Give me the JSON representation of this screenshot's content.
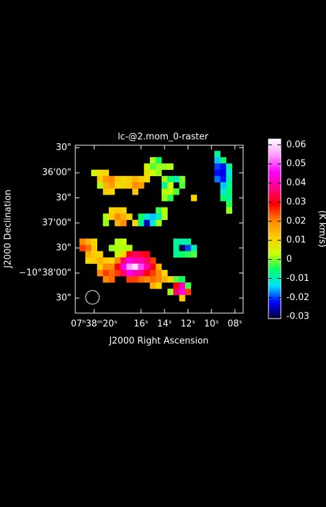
{
  "chart_data": {
    "type": "raster",
    "title": "lc-@2.mom_0-raster",
    "x_label": "J2000 Right Ascension",
    "y_label": "J2000 Declination",
    "colorbar_label": "(K km/s)",
    "xlim": [
      21.6,
      7.3
    ],
    "xticks": [
      {
        "value": 20,
        "label": "07ʰ38ᵐ20ˢ"
      },
      {
        "value": 16,
        "label": "16ˢ"
      },
      {
        "value": 14,
        "label": "14ˢ"
      },
      {
        "value": 12,
        "label": "12ˢ"
      },
      {
        "value": 10,
        "label": "10ˢ"
      },
      {
        "value": 8,
        "label": "08ˢ"
      }
    ],
    "ylim": [
      27,
      228
    ],
    "yticks": [
      {
        "value": 30,
        "label": "30\""
      },
      {
        "value": 60,
        "label": "36'00\""
      },
      {
        "value": 90,
        "label": "30\""
      },
      {
        "value": 120,
        "label": "37'00\""
      },
      {
        "value": 150,
        "label": "30\""
      },
      {
        "value": 180,
        "label": "−10°38'00\""
      },
      {
        "value": 210,
        "label": "30\""
      }
    ],
    "clim": [
      -0.031,
      0.063
    ],
    "cticks": [
      0.06,
      0.05,
      0.04,
      0.03,
      0.02,
      0.01,
      0,
      -0.01,
      -0.02,
      -0.03
    ],
    "colormap": [
      "#000033",
      "#0000ff",
      "#00e0ff",
      "#00ff66",
      "#ccff00",
      "#ffcc00",
      "#ff8800",
      "#ff0000",
      "#ff0088",
      "#ff00ff",
      "#ff99ff",
      "#ffffff"
    ],
    "cell_size": [
      0.5,
      7.5
    ],
    "cells": [
      [
        15,
        45,
        0.002
      ],
      [
        14.5,
        45,
        -0.005
      ],
      [
        15.5,
        52.5,
        0.005
      ],
      [
        15,
        52.5,
        -0.002
      ],
      [
        14.5,
        52.5,
        0.001
      ],
      [
        14,
        52.5,
        0.001
      ],
      [
        13.5,
        52.5,
        0.002
      ],
      [
        20,
        60,
        0.005
      ],
      [
        19.5,
        60,
        0.008
      ],
      [
        19,
        60,
        0.01
      ],
      [
        15.5,
        60,
        0.008
      ],
      [
        15,
        60,
        0.003
      ],
      [
        14.5,
        60,
        0.001
      ],
      [
        19.5,
        67.5,
        0.012
      ],
      [
        19,
        67.5,
        0.018
      ],
      [
        18.5,
        67.5,
        0.02
      ],
      [
        18,
        67.5,
        0.012
      ],
      [
        17.5,
        67.5,
        0.01
      ],
      [
        17,
        67.5,
        0.011
      ],
      [
        16.5,
        67.5,
        0.015
      ],
      [
        16,
        67.5,
        0.012
      ],
      [
        15.5,
        67.5,
        0.01
      ],
      [
        14,
        67.5,
        0.001
      ],
      [
        13.5,
        67.5,
        -0.005
      ],
      [
        13,
        67.5,
        -0.01
      ],
      [
        12.5,
        67.5,
        0.0
      ],
      [
        19.5,
        75,
        0.002
      ],
      [
        19,
        75,
        0.015
      ],
      [
        18.5,
        75,
        0.018
      ],
      [
        18,
        75,
        0.01
      ],
      [
        17.5,
        75,
        0.01
      ],
      [
        17,
        75,
        0.012
      ],
      [
        16.5,
        75,
        0.02
      ],
      [
        16,
        75,
        0.018
      ],
      [
        14,
        75,
        -0.008
      ],
      [
        13.5,
        75,
        0.003
      ],
      [
        12.5,
        75,
        -0.002
      ],
      [
        19,
        82.5,
        0.012
      ],
      [
        18.5,
        82.5,
        0.01
      ],
      [
        16.5,
        82.5,
        0.012
      ],
      [
        14,
        82.5,
        0.002
      ],
      [
        13.5,
        82.5,
        0.003
      ],
      [
        13,
        82.5,
        -0.002
      ],
      [
        14,
        90,
        0.001
      ],
      [
        13.5,
        90,
        -0.004
      ],
      [
        11.5,
        90,
        0.01
      ],
      [
        18.5,
        105,
        0.01
      ],
      [
        18,
        105,
        0.012
      ],
      [
        17.5,
        105,
        0.01
      ],
      [
        14.5,
        105,
        -0.003
      ],
      [
        14,
        105,
        0.002
      ],
      [
        19,
        112.5,
        0.002
      ],
      [
        18.5,
        112.5,
        0.012
      ],
      [
        18,
        112.5,
        0.02
      ],
      [
        17.5,
        112.5,
        0.015
      ],
      [
        17,
        112.5,
        0.01
      ],
      [
        16,
        112.5,
        -0.005
      ],
      [
        15.5,
        112.5,
        -0.012
      ],
      [
        15,
        112.5,
        -0.015
      ],
      [
        14.5,
        112.5,
        -0.01
      ],
      [
        14,
        112.5,
        0.002
      ],
      [
        19,
        120,
        0.001
      ],
      [
        18,
        120,
        0.015
      ],
      [
        17.5,
        120,
        0.02
      ],
      [
        16.5,
        120,
        0.01
      ],
      [
        16,
        120,
        -0.008
      ],
      [
        15.5,
        120,
        -0.025
      ],
      [
        15,
        120,
        -0.012
      ],
      [
        14.5,
        120,
        0.001
      ],
      [
        9.5,
        37.5,
        -0.008
      ],
      [
        9.5,
        45,
        -0.015
      ],
      [
        9,
        45,
        -0.005
      ],
      [
        9.5,
        52.5,
        -0.02
      ],
      [
        9,
        52.5,
        -0.022
      ],
      [
        8.5,
        52.5,
        -0.008
      ],
      [
        9.5,
        60,
        -0.022
      ],
      [
        9,
        60,
        -0.024
      ],
      [
        8.5,
        60,
        -0.012
      ],
      [
        9.5,
        67.5,
        -0.018
      ],
      [
        9,
        67.5,
        -0.022
      ],
      [
        8.5,
        67.5,
        -0.01
      ],
      [
        9,
        75,
        -0.015
      ],
      [
        8.5,
        75,
        -0.008
      ],
      [
        9,
        82.5,
        -0.012
      ],
      [
        8.5,
        82.5,
        -0.006
      ],
      [
        9,
        90,
        -0.005
      ],
      [
        8.5,
        90,
        -0.008
      ],
      [
        8.5,
        97.5,
        -0.004
      ],
      [
        8.5,
        105,
        0.001
      ],
      [
        21,
        142.5,
        0.02
      ],
      [
        20.5,
        142.5,
        0.015
      ],
      [
        20,
        142.5,
        0.01
      ],
      [
        18,
        142.5,
        0.002
      ],
      [
        17.5,
        142.5,
        0.003
      ],
      [
        13,
        142.5,
        -0.008
      ],
      [
        12.5,
        142.5,
        -0.01
      ],
      [
        12,
        142.5,
        -0.008
      ],
      [
        21,
        150,
        0.025
      ],
      [
        20.5,
        150,
        0.022
      ],
      [
        20,
        150,
        0.012
      ],
      [
        18.5,
        150,
        0.001
      ],
      [
        18,
        150,
        0.002
      ],
      [
        17.5,
        150,
        0.002
      ],
      [
        17,
        150,
        0.002
      ],
      [
        13,
        150,
        -0.008
      ],
      [
        12.5,
        150,
        -0.03
      ],
      [
        12,
        150,
        -0.02
      ],
      [
        11.5,
        150,
        -0.01
      ],
      [
        20.5,
        157.5,
        0.015
      ],
      [
        20,
        157.5,
        0.012
      ],
      [
        19.5,
        157.5,
        0.01
      ],
      [
        18,
        157.5,
        0.003
      ],
      [
        17.5,
        157.5,
        0.01
      ],
      [
        17,
        157.5,
        0.03
      ],
      [
        16.5,
        157.5,
        0.035
      ],
      [
        16,
        157.5,
        0.032
      ],
      [
        15.5,
        157.5,
        0.03
      ],
      [
        13,
        157.5,
        -0.008
      ],
      [
        12.5,
        157.5,
        -0.005
      ],
      [
        12,
        157.5,
        -0.004
      ],
      [
        11.5,
        157.5,
        -0.002
      ],
      [
        20.5,
        165,
        0.01
      ],
      [
        20,
        165,
        0.012
      ],
      [
        19.5,
        165,
        0.015
      ],
      [
        19,
        165,
        0.012
      ],
      [
        18.5,
        165,
        0.01
      ],
      [
        18,
        165,
        0.02
      ],
      [
        17.5,
        165,
        0.035
      ],
      [
        17,
        165,
        0.045
      ],
      [
        16.5,
        165,
        0.04
      ],
      [
        16,
        165,
        0.04
      ],
      [
        15.5,
        165,
        0.035
      ],
      [
        15,
        165,
        0.025
      ],
      [
        19.5,
        172.5,
        0.012
      ],
      [
        19,
        172.5,
        0.02
      ],
      [
        18.5,
        172.5,
        0.02
      ],
      [
        18,
        172.5,
        0.03
      ],
      [
        17.5,
        172.5,
        0.045
      ],
      [
        17,
        172.5,
        0.055
      ],
      [
        16.5,
        172.5,
        0.06
      ],
      [
        16,
        172.5,
        0.05
      ],
      [
        15.5,
        172.5,
        0.04
      ],
      [
        15,
        172.5,
        0.03
      ],
      [
        14.5,
        172.5,
        0.015
      ],
      [
        19.5,
        180,
        0.02
      ],
      [
        19,
        180,
        0.025
      ],
      [
        18.5,
        180,
        0.022
      ],
      [
        18,
        180,
        0.025
      ],
      [
        17.5,
        180,
        0.035
      ],
      [
        17,
        180,
        0.045
      ],
      [
        16.5,
        180,
        0.04
      ],
      [
        16,
        180,
        0.038
      ],
      [
        15.5,
        180,
        0.03
      ],
      [
        15,
        180,
        0.025
      ],
      [
        14.5,
        180,
        0.02
      ],
      [
        14,
        180,
        0.01
      ],
      [
        19,
        187.5,
        0.02
      ],
      [
        18.5,
        187.5,
        0.022
      ],
      [
        17,
        187.5,
        0.025
      ],
      [
        16.5,
        187.5,
        0.025
      ],
      [
        16,
        187.5,
        0.022
      ],
      [
        15.5,
        187.5,
        0.02
      ],
      [
        15,
        187.5,
        0.022
      ],
      [
        14.5,
        187.5,
        0.02
      ],
      [
        14,
        187.5,
        0.015
      ],
      [
        13.5,
        187.5,
        0.01
      ],
      [
        13,
        187.5,
        -0.002
      ],
      [
        12.5,
        187.5,
        -0.005
      ],
      [
        15,
        195,
        0.015
      ],
      [
        14.5,
        195,
        0.01
      ],
      [
        13,
        195,
        0.03
      ],
      [
        12.5,
        195,
        0.04
      ],
      [
        12,
        195,
        -0.003
      ],
      [
        13.5,
        202.5,
        0.001
      ],
      [
        13,
        202.5,
        0.035
      ],
      [
        12.5,
        202.5,
        0.045
      ],
      [
        12,
        202.5,
        0.025
      ],
      [
        12.5,
        210,
        0.012
      ]
    ]
  }
}
